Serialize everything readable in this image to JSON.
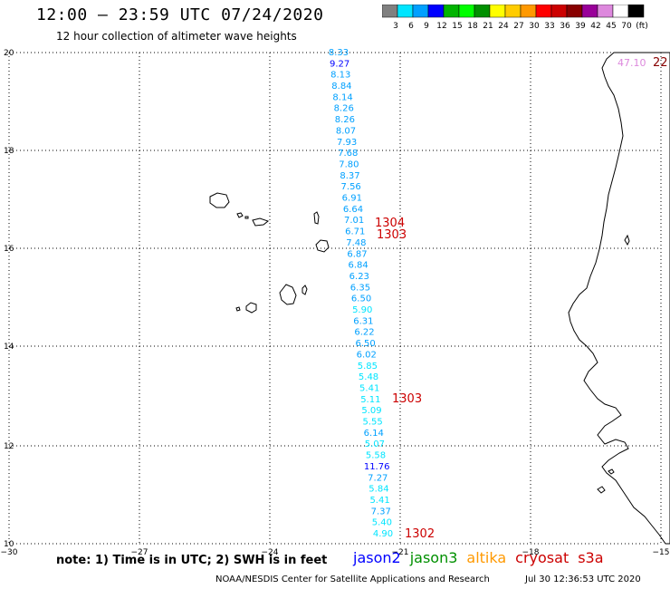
{
  "header": {
    "title": "12:00 – 23:59 UTC 07/24/2020",
    "subtitle": "12 hour collection of altimeter wave heights"
  },
  "colorbar": {
    "labels": [
      "3",
      "6",
      "9",
      "12",
      "15",
      "18",
      "21",
      "24",
      "27",
      "30",
      "33",
      "36",
      "39",
      "42",
      "45",
      "70",
      "(ft)"
    ],
    "colors": [
      "#808080",
      "#00e5ff",
      "#00a0ff",
      "#0000ff",
      "#00b400",
      "#00ff00",
      "#009000",
      "#ffff00",
      "#ffcc00",
      "#ff9900",
      "#ff0000",
      "#cc0000",
      "#880000",
      "#990099",
      "#dd88dd",
      "#ffffff",
      "#000000"
    ]
  },
  "axes": {
    "x_ticks": [
      "−30",
      "−27",
      "−24",
      "−21",
      "−18",
      "−15"
    ],
    "y_ticks": [
      "20",
      "18",
      "16",
      "14",
      "12",
      "10"
    ]
  },
  "track": [
    {
      "v": "8.33",
      "c": "#00a0ff"
    },
    {
      "v": "9.27",
      "c": "#0000ff"
    },
    {
      "v": "8.13",
      "c": "#00a0ff"
    },
    {
      "v": "8.84",
      "c": "#00a0ff"
    },
    {
      "v": "8.14",
      "c": "#00a0ff"
    },
    {
      "v": "8.26",
      "c": "#00a0ff"
    },
    {
      "v": "8.26",
      "c": "#00a0ff"
    },
    {
      "v": "8.07",
      "c": "#00a0ff"
    },
    {
      "v": "7.93",
      "c": "#00a0ff"
    },
    {
      "v": "7.68",
      "c": "#00a0ff"
    },
    {
      "v": "7.80",
      "c": "#00a0ff"
    },
    {
      "v": "8.37",
      "c": "#00a0ff"
    },
    {
      "v": "7.56",
      "c": "#00a0ff"
    },
    {
      "v": "6.91",
      "c": "#00a0ff"
    },
    {
      "v": "6.64",
      "c": "#00a0ff"
    },
    {
      "v": "7.01",
      "c": "#00a0ff"
    },
    {
      "v": "6.71",
      "c": "#00a0ff"
    },
    {
      "v": "7.48",
      "c": "#00a0ff"
    },
    {
      "v": "6.87",
      "c": "#00a0ff"
    },
    {
      "v": "6.84",
      "c": "#00a0ff"
    },
    {
      "v": "6.23",
      "c": "#00a0ff"
    },
    {
      "v": "6.35",
      "c": "#00a0ff"
    },
    {
      "v": "6.50",
      "c": "#00a0ff"
    },
    {
      "v": "5.90",
      "c": "#00e5ff"
    },
    {
      "v": "6.31",
      "c": "#00a0ff"
    },
    {
      "v": "6.22",
      "c": "#00a0ff"
    },
    {
      "v": "6.50",
      "c": "#00a0ff"
    },
    {
      "v": "6.02",
      "c": "#00a0ff"
    },
    {
      "v": "5.85",
      "c": "#00e5ff"
    },
    {
      "v": "5.48",
      "c": "#00e5ff"
    },
    {
      "v": "5.41",
      "c": "#00e5ff"
    },
    {
      "v": "5.11",
      "c": "#00e5ff"
    },
    {
      "v": "5.09",
      "c": "#00e5ff"
    },
    {
      "v": "5.55",
      "c": "#00e5ff"
    },
    {
      "v": "6.14",
      "c": "#00a0ff"
    },
    {
      "v": "5.07",
      "c": "#00e5ff"
    },
    {
      "v": "5.58",
      "c": "#00e5ff"
    },
    {
      "v": "11.76",
      "c": "#0000ff"
    },
    {
      "v": "7.27",
      "c": "#00a0ff"
    },
    {
      "v": "5.84",
      "c": "#00e5ff"
    },
    {
      "v": "5.41",
      "c": "#00e5ff"
    },
    {
      "v": "7.37",
      "c": "#00a0ff"
    },
    {
      "v": "5.40",
      "c": "#00e5ff"
    },
    {
      "v": "4.90",
      "c": "#00e5ff"
    }
  ],
  "time_labels": [
    "1304",
    "1303",
    "1303",
    "1302"
  ],
  "corner_value": "47.10",
  "corner_time": "22",
  "footer": {
    "note": "note: 1) Time is in UTC; 2) SWH is in feet",
    "sats": [
      {
        "name": "jason2",
        "color": "#0000ff"
      },
      {
        "name": "jason3",
        "color": "#009000"
      },
      {
        "name": "altika",
        "color": "#ff9900"
      },
      {
        "name": "cryosat",
        "color": "#cc0000"
      },
      {
        "name": "s3a",
        "color": "#cc0000"
      }
    ],
    "credit": "NOAA/NESDIS Center for Satellite Applications and Research",
    "date": "Jul 30 12:36:53 UTC 2020"
  }
}
